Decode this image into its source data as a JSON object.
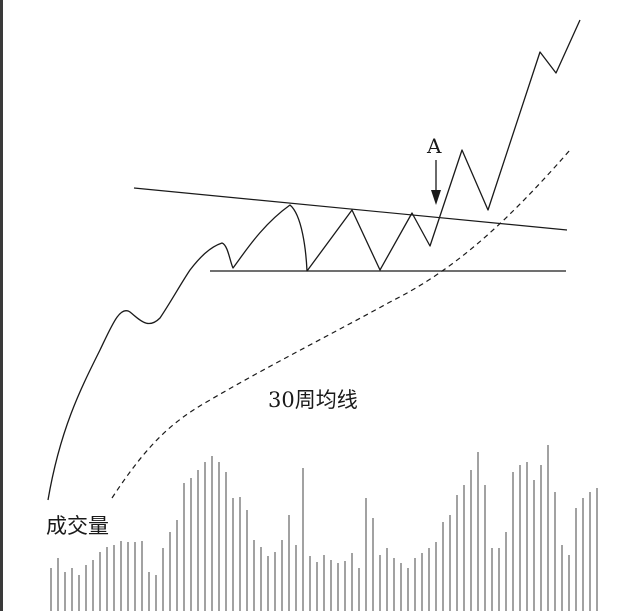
{
  "labels": {
    "breakout_marker": "A",
    "moving_average": "30周均线",
    "volume": "成交量"
  },
  "colors": {
    "ink": "#1a1a1a",
    "volume_bar": "#8a8a8a",
    "border": "#3a3a3a",
    "background": "#ffffff"
  }
}
